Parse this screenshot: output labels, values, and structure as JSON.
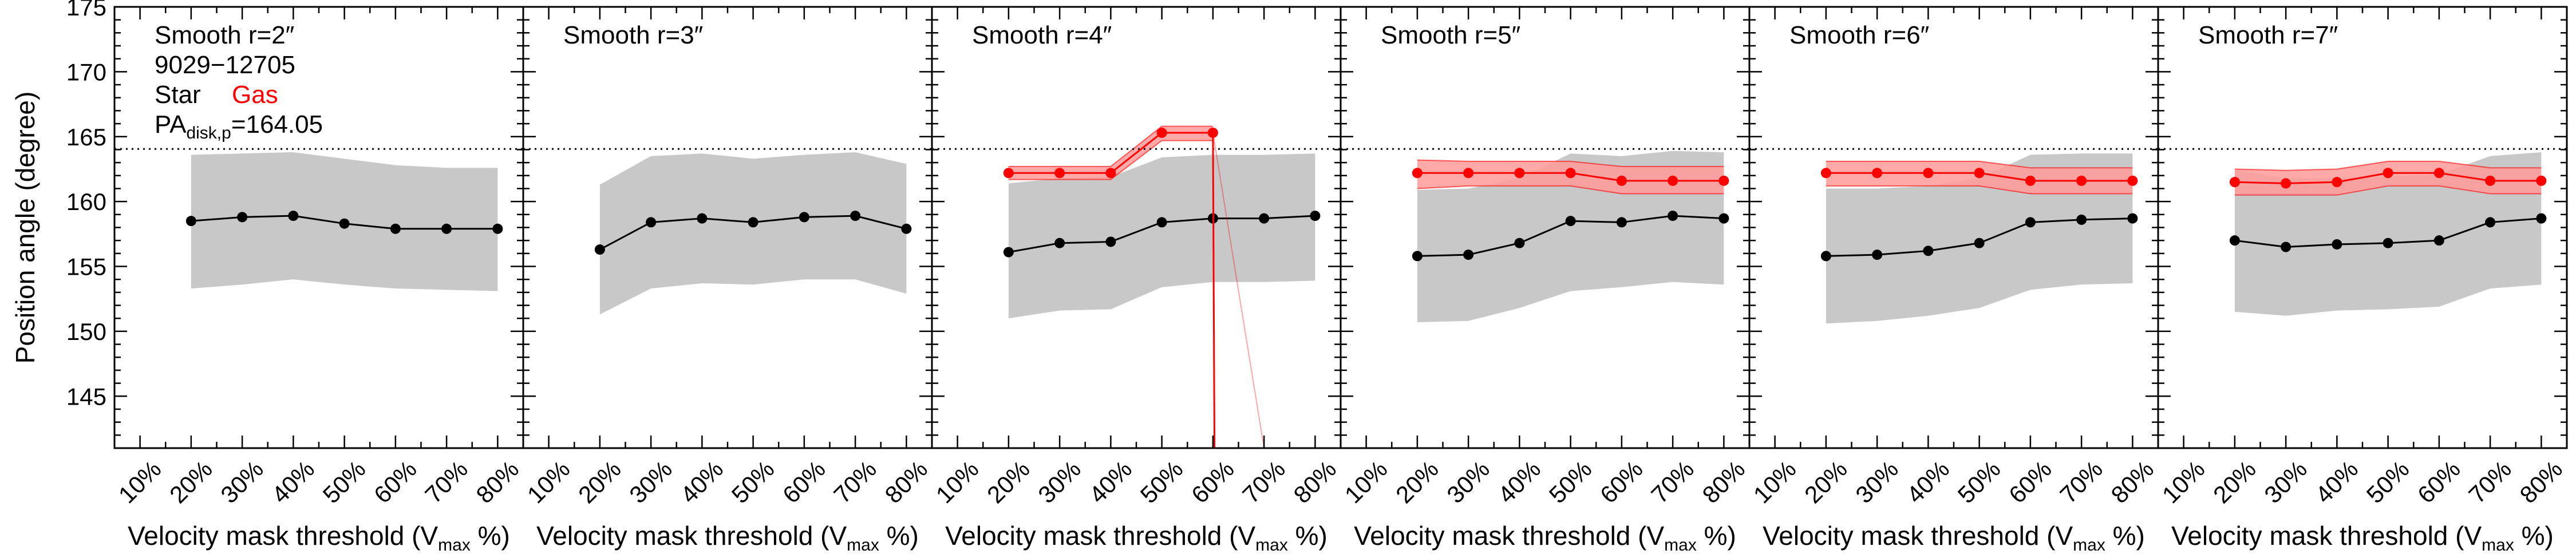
{
  "colors": {
    "star": "#000000",
    "star_band": "#c8c8c8",
    "gas": "#ff0000",
    "gas_band": "#ff9a9a",
    "reference_line": "#000000"
  },
  "chart_data": [
    {
      "type": "line",
      "title": "Smooth r=2″",
      "legend": {
        "plate": "9029−12705",
        "star": "Star",
        "gas": "Gas",
        "pa_label": "PA",
        "pa_sub": "disk,p",
        "pa_value": "=164.05"
      },
      "ylabel": "Position angle (degree)",
      "xlabel": "Velocity mask threshold (V",
      "xlabel_sub": "max",
      "xlabel_end": " %)",
      "categories": [
        "10%",
        "20%",
        "30%",
        "40%",
        "50%",
        "60%",
        "70%",
        "80%"
      ],
      "xlim": [
        5,
        85
      ],
      "ylim": [
        141,
        175
      ],
      "yticks": [
        145,
        150,
        155,
        160,
        165,
        170,
        175
      ],
      "reference_pa": 164.05,
      "series": [
        {
          "role": "star",
          "name": "Star",
          "x": [
            20,
            30,
            40,
            50,
            60,
            70,
            80
          ],
          "y": [
            158.5,
            158.8,
            158.9,
            158.3,
            157.9,
            157.9,
            157.9
          ],
          "lower": [
            153.3,
            153.6,
            154.0,
            153.6,
            153.3,
            153.2,
            153.1
          ],
          "upper": [
            163.6,
            163.7,
            163.8,
            163.3,
            162.8,
            162.6,
            162.6
          ]
        }
      ]
    },
    {
      "type": "line",
      "title": "Smooth r=3″",
      "xlabel": "Velocity mask threshold (V",
      "xlabel_sub": "max",
      "xlabel_end": " %)",
      "categories": [
        "10%",
        "20%",
        "30%",
        "40%",
        "50%",
        "60%",
        "70%",
        "80%"
      ],
      "xlim": [
        5,
        85
      ],
      "ylim": [
        141,
        175
      ],
      "reference_pa": 164.05,
      "series": [
        {
          "role": "star",
          "name": "Star",
          "x": [
            20,
            30,
            40,
            50,
            60,
            70,
            80
          ],
          "y": [
            156.3,
            158.4,
            158.7,
            158.4,
            158.8,
            158.9,
            157.9
          ],
          "lower": [
            151.3,
            153.3,
            153.7,
            153.6,
            154.0,
            154.0,
            152.9
          ],
          "upper": [
            161.3,
            163.5,
            163.7,
            163.3,
            163.6,
            163.8,
            162.9
          ]
        }
      ]
    },
    {
      "type": "line",
      "title": "Smooth r=4″",
      "xlabel": "Velocity mask threshold (V",
      "xlabel_sub": "max",
      "xlabel_end": " %)",
      "categories": [
        "10%",
        "20%",
        "30%",
        "40%",
        "50%",
        "60%",
        "70%",
        "80%"
      ],
      "xlim": [
        5,
        85
      ],
      "ylim": [
        141,
        175
      ],
      "reference_pa": 164.05,
      "series": [
        {
          "role": "star",
          "name": "Star",
          "x": [
            20,
            30,
            40,
            50,
            60,
            70,
            80
          ],
          "y": [
            156.1,
            156.8,
            156.9,
            158.4,
            158.7,
            158.7,
            158.9
          ],
          "lower": [
            151.0,
            151.6,
            151.7,
            153.4,
            153.8,
            153.8,
            153.9
          ],
          "upper": [
            161.4,
            161.8,
            161.9,
            163.4,
            163.6,
            163.6,
            163.7
          ]
        },
        {
          "role": "gas",
          "name": "Gas",
          "x": [
            20,
            30,
            40,
            50,
            60
          ],
          "y": [
            162.2,
            162.2,
            162.2,
            165.3,
            165.3
          ],
          "lower": [
            161.7,
            161.7,
            161.7,
            164.7,
            164.7
          ],
          "upper": [
            162.7,
            162.7,
            162.7,
            165.8,
            165.8
          ],
          "drop": {
            "x": 60,
            "x_end": 60.3,
            "y_end": 141
          },
          "faint": {
            "x": 60,
            "x_end": 70,
            "y_end": 141
          }
        }
      ]
    },
    {
      "type": "line",
      "title": "Smooth r=5″",
      "xlabel": "Velocity mask threshold (V",
      "xlabel_sub": "max",
      "xlabel_end": " %)",
      "categories": [
        "10%",
        "20%",
        "30%",
        "40%",
        "50%",
        "60%",
        "70%",
        "80%"
      ],
      "xlim": [
        5,
        85
      ],
      "ylim": [
        141,
        175
      ],
      "reference_pa": 164.05,
      "series": [
        {
          "role": "star",
          "name": "Star",
          "x": [
            20,
            30,
            40,
            50,
            60,
            70,
            80
          ],
          "y": [
            155.8,
            155.9,
            156.8,
            158.5,
            158.4,
            158.9,
            158.7
          ],
          "lower": [
            150.7,
            150.8,
            151.8,
            153.1,
            153.4,
            153.8,
            153.6
          ],
          "upper": [
            160.9,
            161.0,
            161.8,
            163.7,
            163.5,
            163.9,
            163.8
          ]
        },
        {
          "role": "gas",
          "name": "Gas",
          "x": [
            20,
            30,
            40,
            50,
            60,
            70,
            80
          ],
          "y": [
            162.2,
            162.2,
            162.2,
            162.2,
            161.6,
            161.6,
            161.6
          ],
          "lower": [
            161.0,
            161.2,
            161.2,
            161.2,
            160.6,
            160.6,
            160.6
          ],
          "upper": [
            163.2,
            163.1,
            163.1,
            163.1,
            162.7,
            162.7,
            162.7
          ]
        }
      ]
    },
    {
      "type": "line",
      "title": "Smooth r=6″",
      "xlabel": "Velocity mask threshold (V",
      "xlabel_sub": "max",
      "xlabel_end": " %)",
      "categories": [
        "10%",
        "20%",
        "30%",
        "40%",
        "50%",
        "60%",
        "70%",
        "80%"
      ],
      "xlim": [
        5,
        85
      ],
      "ylim": [
        141,
        175
      ],
      "reference_pa": 164.05,
      "series": [
        {
          "role": "star",
          "name": "Star",
          "x": [
            20,
            30,
            40,
            50,
            60,
            70,
            80
          ],
          "y": [
            155.8,
            155.9,
            156.2,
            156.8,
            158.4,
            158.6,
            158.7
          ],
          "lower": [
            150.6,
            150.8,
            151.2,
            151.8,
            153.2,
            153.6,
            153.7
          ],
          "upper": [
            161.0,
            161.0,
            161.2,
            161.8,
            163.6,
            163.7,
            163.7
          ]
        },
        {
          "role": "gas",
          "name": "Gas",
          "x": [
            20,
            30,
            40,
            50,
            60,
            70,
            80
          ],
          "y": [
            162.2,
            162.2,
            162.2,
            162.2,
            161.6,
            161.6,
            161.6
          ],
          "lower": [
            161.2,
            161.2,
            161.2,
            161.2,
            160.6,
            160.6,
            160.6
          ],
          "upper": [
            163.1,
            163.1,
            163.1,
            163.1,
            162.6,
            162.6,
            162.6
          ]
        }
      ]
    },
    {
      "type": "line",
      "title": "Smooth r=7″",
      "xlabel": "Velocity mask threshold (V",
      "xlabel_sub": "max",
      "xlabel_end": " %)",
      "categories": [
        "10%",
        "20%",
        "30%",
        "40%",
        "50%",
        "60%",
        "70%",
        "80%"
      ],
      "xlim": [
        5,
        85
      ],
      "ylim": [
        141,
        175
      ],
      "reference_pa": 164.05,
      "series": [
        {
          "role": "star",
          "name": "Star",
          "x": [
            20,
            30,
            40,
            50,
            60,
            70,
            80
          ],
          "y": [
            157.0,
            156.5,
            156.7,
            156.8,
            157.0,
            158.4,
            158.7
          ],
          "lower": [
            151.5,
            151.2,
            151.6,
            151.7,
            151.9,
            153.3,
            153.6
          ],
          "upper": [
            162.4,
            161.8,
            161.8,
            161.9,
            162.1,
            163.5,
            163.8
          ]
        },
        {
          "role": "gas",
          "name": "Gas",
          "x": [
            20,
            30,
            40,
            50,
            60,
            70,
            80
          ],
          "y": [
            161.5,
            161.4,
            161.5,
            162.2,
            162.2,
            161.6,
            161.6
          ],
          "lower": [
            160.5,
            160.5,
            160.5,
            161.2,
            161.2,
            160.6,
            160.6
          ],
          "upper": [
            162.5,
            162.4,
            162.5,
            163.1,
            163.1,
            162.6,
            162.6
          ]
        }
      ]
    }
  ]
}
